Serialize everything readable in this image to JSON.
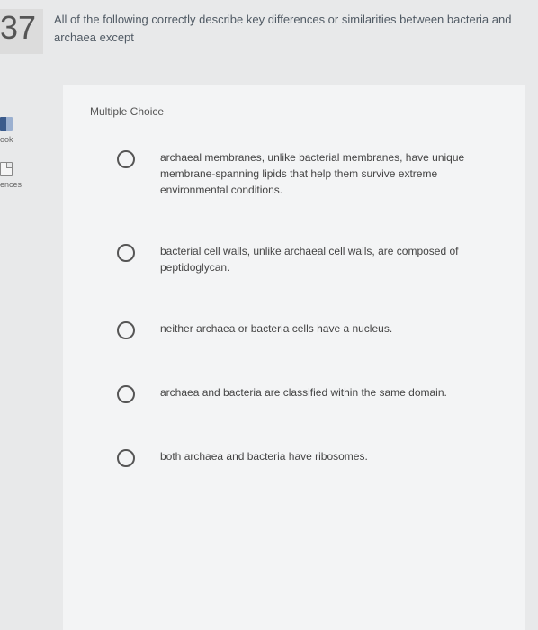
{
  "question": {
    "number": "37",
    "text": "All of the following correctly describe key differences or similarities between bacteria and archaea except"
  },
  "sidebar": {
    "items": [
      {
        "label": "ook"
      },
      {
        "label": "ences"
      }
    ]
  },
  "section_label": "Multiple Choice",
  "choices": [
    {
      "text": "archaeal membranes, unlike bacterial membranes, have unique membrane-spanning lipids that help them survive extreme environmental conditions."
    },
    {
      "text": "bacterial cell walls, unlike archaeal cell walls, are composed of peptidoglycan."
    },
    {
      "text": "neither archaea or bacteria cells have a nucleus."
    },
    {
      "text": "archaea and bacteria are classified within the same domain."
    },
    {
      "text": "both archaea and bacteria have ribosomes."
    }
  ],
  "colors": {
    "page_bg": "#e8e9ea",
    "content_bg": "#f3f4f5",
    "text_primary": "#505a64",
    "text_choice": "#444",
    "radio_border": "#555"
  }
}
